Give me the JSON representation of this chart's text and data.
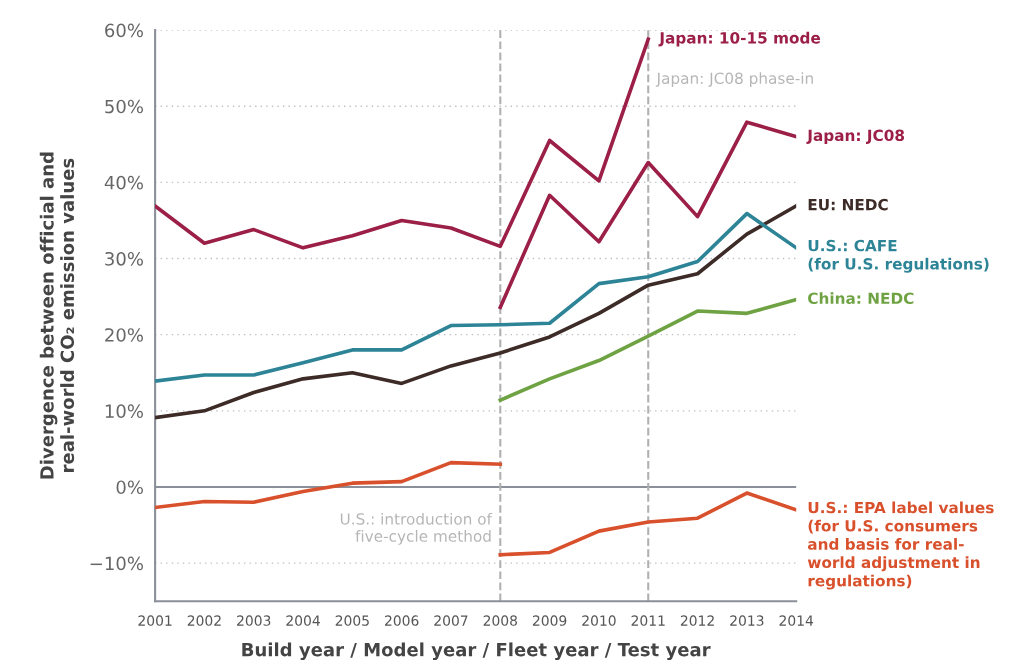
{
  "chart_data": {
    "type": "line",
    "xlabel": "Build year / Model year / Fleet year / Test year",
    "ylabel": "Divergence between official and\nreal-world CO₂ emission values",
    "xlim": [
      2001,
      2014
    ],
    "xticks": [
      2001,
      2002,
      2003,
      2004,
      2005,
      2006,
      2007,
      2008,
      2009,
      2010,
      2011,
      2012,
      2013,
      2014
    ],
    "ylim": [
      -15,
      60
    ],
    "yticks": [
      {
        "value": -10,
        "label": "−10%"
      },
      {
        "value": 0,
        "label": "0%"
      },
      {
        "value": 10,
        "label": "10%"
      },
      {
        "value": 20,
        "label": "20%"
      },
      {
        "value": 30,
        "label": "30%"
      },
      {
        "value": 40,
        "label": "40%"
      },
      {
        "value": 50,
        "label": "50%"
      },
      {
        "value": 60,
        "label": "60%"
      }
    ],
    "grid": "y",
    "legend": false,
    "marker": "none",
    "line_style": "solid",
    "series": [
      {
        "name": "Japan: 10-15 mode",
        "color": "#9b1f47",
        "x": [
          2001,
          2002,
          2003,
          2004,
          2005,
          2006,
          2007,
          2008,
          2009,
          2010,
          2011
        ],
        "values": [
          36.9,
          32.0,
          33.8,
          31.4,
          33.0,
          35.0,
          34.0,
          31.6,
          45.5,
          40.2,
          58.8
        ]
      },
      {
        "name": "Japan: JC08",
        "color": "#9b1f47",
        "x": [
          2008,
          2009,
          2010,
          2011,
          2012,
          2013,
          2014
        ],
        "values": [
          23.6,
          38.3,
          32.2,
          42.6,
          35.5,
          47.9,
          46.0
        ]
      },
      {
        "name": "EU: NEDC",
        "color": "#3d2b27",
        "x": [
          2001,
          2002,
          2003,
          2004,
          2005,
          2006,
          2007,
          2008,
          2009,
          2010,
          2011,
          2012,
          2013,
          2014
        ],
        "values": [
          9.1,
          10.0,
          12.4,
          14.2,
          15.0,
          13.6,
          15.9,
          17.6,
          19.7,
          22.8,
          26.5,
          28.0,
          33.2,
          36.9
        ]
      },
      {
        "name": "U.S.: CAFE\n(for U.S. regulations)",
        "color": "#2e8497",
        "x": [
          2001,
          2002,
          2003,
          2004,
          2005,
          2006,
          2007,
          2008,
          2009,
          2010,
          2011,
          2012,
          2013,
          2014
        ],
        "values": [
          13.9,
          14.7,
          14.7,
          16.3,
          18.0,
          18.0,
          21.2,
          21.3,
          21.5,
          26.7,
          27.6,
          29.6,
          35.9,
          31.4
        ]
      },
      {
        "name": "China: NEDC",
        "color": "#6ea242",
        "x": [
          2008,
          2009,
          2010,
          2011,
          2012,
          2013,
          2014
        ],
        "values": [
          11.4,
          14.2,
          16.6,
          19.8,
          23.1,
          22.8,
          24.6
        ]
      },
      {
        "color": "#d9512c",
        "x": [
          2001,
          2002,
          2003,
          2004,
          2005,
          2006,
          2007,
          2008
        ],
        "values": [
          -2.7,
          -1.9,
          -2.0,
          -0.6,
          0.5,
          0.7,
          3.2,
          3.0
        ]
      },
      {
        "name": "U.S.: EPA label values\n(for U.S. consumers\nand basis for real-\nworld adjustment in\nregulations)",
        "color": "#d9512c",
        "x": [
          2008,
          2009,
          2010,
          2011,
          2012,
          2013,
          2014
        ],
        "values": [
          -8.9,
          -8.6,
          -5.8,
          -4.6,
          -4.1,
          -0.8,
          -3.0
        ]
      }
    ],
    "ref_lines": [
      {
        "axis": "y",
        "value": 0,
        "color": "#8a8f99",
        "line_style": "solid"
      },
      {
        "axis": "x",
        "value": 2008,
        "color": "#b0b0b0",
        "line_style": "dashed"
      },
      {
        "axis": "x",
        "value": 2011,
        "color": "#b0b0b0",
        "line_style": "dashed"
      }
    ],
    "annotations": [
      {
        "text": "U.S.: introduction of\nfive-cycle method",
        "x": 2008,
        "y": -5.5
      },
      {
        "text": "Japan: JC08 phase-in",
        "x": 2011,
        "y": 53.5
      }
    ]
  }
}
